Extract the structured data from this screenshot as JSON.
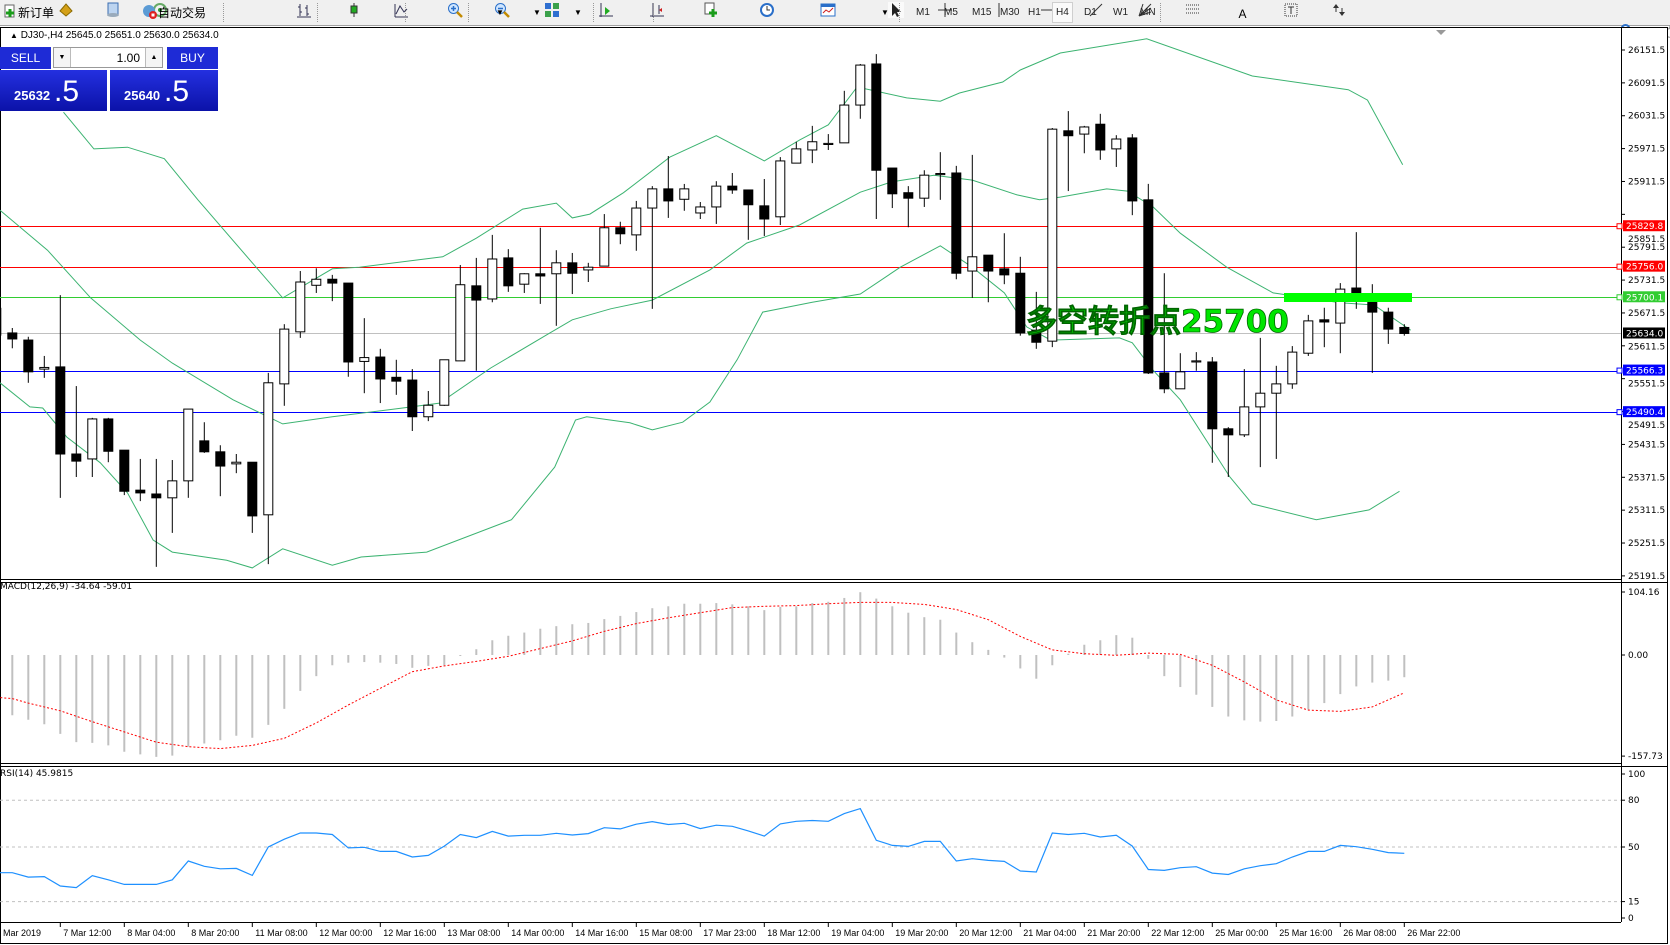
{
  "toolbar": {
    "new_order_label": "新订单",
    "auto_trading_label": "自动交易",
    "timeframes": [
      "M1",
      "M5",
      "M15",
      "M30",
      "H1",
      "H4",
      "D1",
      "W1",
      "MN"
    ],
    "active_timeframe": "H4",
    "icons": [
      "new-order-icon",
      "market-watch-icon",
      "navigator-icon",
      "signals-icon",
      "auto-trading-icon",
      "bar-chart-icon",
      "candlestick-icon",
      "line-chart-icon",
      "zoom-in-icon",
      "zoom-out-icon",
      "tile-windows-icon",
      "auto-scroll-icon",
      "chart-shift-icon",
      "indicators-icon",
      "periods-clock-icon",
      "templates-icon",
      "cursor-icon",
      "crosshair-icon",
      "vertical-line-icon",
      "horizontal-line-icon",
      "trendline-icon",
      "fibonacci-fan-icon",
      "fibonacci-retracement-icon",
      "text-icon",
      "text-label-icon",
      "arrows-icon",
      "search-icon",
      "chat-icon"
    ]
  },
  "chart": {
    "header": "DJ30-,H4  25645.0 25651.0 25630.0 25634.0",
    "trade_panel": {
      "sell_label": "SELL",
      "buy_label": "BUY",
      "lot": "1.00",
      "sell_price_main": "25632",
      "sell_price_big": ".5",
      "buy_price_main": "25640",
      "buy_price_big": ".5"
    },
    "annotation": "多空转折点25700",
    "annotation_color": "#00e600",
    "price_axis_labels": [
      "26151.5",
      "26091.5",
      "26031.5",
      "25971.5",
      "25911.5",
      "25851.5",
      "25791.5",
      "25731.5",
      "25671.5",
      "25611.5",
      "25551.5",
      "25491.5",
      "25431.5",
      "25371.5",
      "25311.5",
      "25251.5",
      "25191.5"
    ],
    "level_lines": [
      {
        "price": "25829.8",
        "color": "#ff0000"
      },
      {
        "price": "25756.0",
        "color": "#ff0000"
      },
      {
        "price": "25700.1",
        "color": "#32cd32"
      },
      {
        "price": "25634.0",
        "color": "#000000",
        "line_color": "#c0c0c0"
      },
      {
        "price": "25566.3",
        "color": "#0000ff"
      },
      {
        "price": "25490.4",
        "color": "#0000ff"
      }
    ],
    "candles_ohlc": [
      [
        25680,
        25695,
        25613,
        25631
      ],
      [
        25635,
        25644,
        25607,
        25624
      ],
      [
        25622,
        25628,
        25544,
        25564
      ],
      [
        25569,
        25593,
        25553,
        25572
      ],
      [
        25573,
        25704,
        25334,
        25414
      ],
      [
        25414,
        25538,
        25372,
        25401
      ],
      [
        25405,
        25480,
        25372,
        25478
      ],
      [
        25478,
        25480,
        25399,
        25419
      ],
      [
        25421,
        25421,
        25339,
        25346
      ],
      [
        25348,
        25405,
        25328,
        25343
      ],
      [
        25341,
        25405,
        25208,
        25334
      ],
      [
        25334,
        25403,
        25270,
        25365
      ],
      [
        25365,
        25496,
        25334,
        25496
      ],
      [
        25438,
        25472,
        25416,
        25418
      ],
      [
        25418,
        25430,
        25337,
        25392
      ],
      [
        25396,
        25414,
        25379,
        25399
      ],
      [
        25399,
        25399,
        25270,
        25301
      ],
      [
        25303,
        25562,
        25213,
        25544
      ],
      [
        25542,
        25651,
        25502,
        25642
      ],
      [
        25637,
        25748,
        25626,
        25728
      ],
      [
        25722,
        25753,
        25708,
        25733
      ],
      [
        25733,
        25741,
        25693,
        25726
      ],
      [
        25726,
        25726,
        25555,
        25582
      ],
      [
        25583,
        25662,
        25525,
        25590
      ],
      [
        25591,
        25606,
        25507,
        25551
      ],
      [
        25554,
        25586,
        25522,
        25547
      ],
      [
        25549,
        25569,
        25456,
        25482
      ],
      [
        25482,
        25529,
        25474,
        25503
      ],
      [
        25503,
        25586,
        25502,
        25586
      ],
      [
        25584,
        25759,
        25584,
        25723
      ],
      [
        25721,
        25772,
        25566,
        25695
      ],
      [
        25697,
        25814,
        25691,
        25770
      ],
      [
        25772,
        25788,
        25710,
        25721
      ],
      [
        25724,
        25744,
        25708,
        25743
      ],
      [
        25743,
        25827,
        25688,
        25739
      ],
      [
        25743,
        25786,
        25648,
        25763
      ],
      [
        25763,
        25781,
        25706,
        25744
      ],
      [
        25750,
        25763,
        25728,
        25755
      ],
      [
        25757,
        25852,
        25757,
        25827
      ],
      [
        25827,
        25838,
        25797,
        25816
      ],
      [
        25814,
        25876,
        25785,
        25863
      ],
      [
        25863,
        25903,
        25679,
        25898
      ],
      [
        25898,
        25958,
        25845,
        25876
      ],
      [
        25879,
        25907,
        25858,
        25898
      ],
      [
        25854,
        25874,
        25843,
        25865
      ],
      [
        25865,
        25912,
        25834,
        25903
      ],
      [
        25903,
        25927,
        25889,
        25896
      ],
      [
        25896,
        25896,
        25805,
        25869
      ],
      [
        25867,
        25916,
        25812,
        25843
      ],
      [
        25847,
        25956,
        25832,
        25949
      ],
      [
        25945,
        25984,
        25945,
        25971
      ],
      [
        25969,
        26013,
        25945,
        25984
      ],
      [
        25979,
        25998,
        25969,
        25981
      ],
      [
        25982,
        26077,
        25982,
        26051
      ],
      [
        26051,
        26126,
        26026,
        26124
      ],
      [
        26126,
        26144,
        25843,
        25932
      ],
      [
        25936,
        25936,
        25863,
        25889
      ],
      [
        25891,
        25903,
        25828,
        25881
      ],
      [
        25881,
        25932,
        25865,
        25923
      ],
      [
        25924,
        25965,
        25878,
        25926
      ],
      [
        25927,
        25940,
        25733,
        25744
      ],
      [
        25748,
        25960,
        25699,
        25774
      ],
      [
        25777,
        25777,
        25691,
        25748
      ],
      [
        25752,
        25817,
        25724,
        25741
      ],
      [
        25744,
        25774,
        25630,
        25635
      ],
      [
        25640,
        25710,
        25606,
        25618
      ],
      [
        25620,
        26009,
        25609,
        26007
      ],
      [
        26004,
        26040,
        25894,
        25995
      ],
      [
        25998,
        26013,
        25963,
        26011
      ],
      [
        26016,
        26035,
        25951,
        25969
      ],
      [
        25971,
        25996,
        25938,
        25989
      ],
      [
        25991,
        25998,
        25850,
        25876
      ],
      [
        25878,
        25907,
        25560,
        25562
      ],
      [
        25562,
        25744,
        25525,
        25533
      ],
      [
        25533,
        25598,
        25533,
        25564
      ],
      [
        25582,
        25600,
        25566,
        25584
      ],
      [
        25582,
        25591,
        25398,
        25460
      ],
      [
        25460,
        25463,
        25372,
        25449
      ],
      [
        25449,
        25569,
        25445,
        25500
      ],
      [
        25500,
        25626,
        25390,
        25525
      ],
      [
        25525,
        25575,
        25405,
        25542
      ],
      [
        25542,
        25611,
        25533,
        25600
      ],
      [
        25598,
        25668,
        25593,
        25657
      ],
      [
        25659,
        25681,
        25609,
        25655
      ],
      [
        25653,
        25726,
        25598,
        25715
      ],
      [
        25717,
        25819,
        25679,
        25708
      ],
      [
        25691,
        25724,
        25562,
        25673
      ],
      [
        25673,
        25681,
        25615,
        25642
      ],
      [
        25645,
        25651,
        25630,
        25634
      ]
    ],
    "bollinger": {
      "color": "#3cb371",
      "upper": [
        [
          3.2,
          26038
        ],
        [
          5.1,
          25971
        ],
        [
          7.2,
          25974
        ],
        [
          9.5,
          25953
        ],
        [
          11.6,
          25878
        ],
        [
          15,
          25763
        ],
        [
          16.9,
          25699
        ],
        [
          20,
          25752
        ],
        [
          21.7,
          25755
        ],
        [
          26.9,
          25774
        ],
        [
          29,
          25808
        ],
        [
          31.9,
          25861
        ],
        [
          34,
          25872
        ],
        [
          35,
          25845
        ],
        [
          36.1,
          25852
        ],
        [
          38.2,
          25891
        ],
        [
          41.1,
          25956
        ],
        [
          44,
          25995
        ],
        [
          47,
          25949
        ],
        [
          49.2,
          25987
        ],
        [
          51,
          26015
        ],
        [
          52.8,
          26084
        ],
        [
          54.2,
          26075
        ],
        [
          55.9,
          26064
        ],
        [
          58,
          26058
        ],
        [
          59.2,
          26073
        ],
        [
          61.9,
          26093
        ],
        [
          63,
          26115
        ],
        [
          65.5,
          26146
        ],
        [
          70.9,
          26172
        ],
        [
          77.5,
          26104
        ],
        [
          83.5,
          26079
        ],
        [
          84.7,
          26060
        ],
        [
          86.9,
          25942
        ]
      ],
      "middle": [
        [
          -0.77,
          25859
        ],
        [
          2.2,
          25786
        ],
        [
          4.9,
          25699
        ],
        [
          8,
          25622
        ],
        [
          10,
          25580
        ],
        [
          13.8,
          25513
        ],
        [
          16.9,
          25469
        ],
        [
          20,
          25482
        ],
        [
          24.4,
          25498
        ],
        [
          26.7,
          25507
        ],
        [
          29.9,
          25571
        ],
        [
          33.6,
          25635
        ],
        [
          35,
          25659
        ],
        [
          37.4,
          25679
        ],
        [
          40,
          25695
        ],
        [
          43.6,
          25750
        ],
        [
          45.9,
          25799
        ],
        [
          49.2,
          25832
        ],
        [
          53,
          25892
        ],
        [
          55,
          25911
        ],
        [
          57.6,
          25923
        ],
        [
          60,
          25914
        ],
        [
          62.8,
          25887
        ],
        [
          64.2,
          25878
        ],
        [
          65.5,
          25883
        ],
        [
          68.4,
          25898
        ],
        [
          69.7,
          25894
        ],
        [
          71.3,
          25865
        ],
        [
          73,
          25817
        ],
        [
          75.9,
          25755
        ],
        [
          78.8,
          25708
        ],
        [
          83,
          25690
        ],
        [
          85.1,
          25686
        ],
        [
          87.4,
          25640
        ]
      ],
      "lower": [
        [
          -0.77,
          25544
        ],
        [
          1.1,
          25500
        ],
        [
          1.9,
          25498
        ],
        [
          3.4,
          25445
        ],
        [
          5.5,
          25398
        ],
        [
          7.2,
          25343
        ],
        [
          8.8,
          25257
        ],
        [
          10,
          25235
        ],
        [
          13.4,
          25220
        ],
        [
          15,
          25206
        ],
        [
          16.9,
          25241
        ],
        [
          20,
          25211
        ],
        [
          21.8,
          25226
        ],
        [
          25.9,
          25235
        ],
        [
          31.2,
          25294
        ],
        [
          33.9,
          25390
        ],
        [
          35.2,
          25476
        ],
        [
          35.9,
          25482
        ],
        [
          38.6,
          25471
        ],
        [
          40,
          25458
        ],
        [
          41.9,
          25472
        ],
        [
          43.6,
          25509
        ],
        [
          45.3,
          25586
        ],
        [
          46.9,
          25673
        ],
        [
          50,
          25691
        ],
        [
          53,
          25706
        ],
        [
          55.5,
          25755
        ],
        [
          58,
          25794
        ],
        [
          60,
          25755
        ],
        [
          62,
          25708
        ],
        [
          63.4,
          25646
        ],
        [
          64.9,
          25622
        ],
        [
          69.2,
          25626
        ],
        [
          70,
          25617
        ],
        [
          71.3,
          25567
        ],
        [
          73,
          25513
        ],
        [
          76.1,
          25372
        ],
        [
          77.5,
          25323
        ],
        [
          81.5,
          25294
        ],
        [
          84.8,
          25312
        ],
        [
          86.7,
          25346
        ]
      ]
    }
  },
  "macd": {
    "label": "MACD(12,26,9) -34.64 -59.01",
    "axis_labels": [
      "104.16",
      "0.00",
      "-157.73"
    ],
    "histogram_color": "#c0c0c0",
    "signal_color": "#ff0000",
    "histogram": [
      -94,
      -101,
      -108,
      -123,
      -136,
      -137,
      -141,
      -151,
      -155,
      -159,
      -157,
      -143,
      -138,
      -133,
      -126,
      -129,
      -109,
      -84,
      -56,
      -33,
      -16,
      -12,
      -11,
      -12,
      -14,
      -20,
      -17,
      -16,
      -1.5,
      9,
      23,
      30,
      35,
      41,
      45,
      48,
      50,
      56,
      61,
      67,
      73,
      76,
      80,
      80,
      81,
      79,
      76,
      70,
      75,
      76,
      81,
      83,
      89,
      98,
      88,
      76,
      66,
      59,
      55,
      35,
      20,
      8,
      -4,
      -21,
      -37,
      -16,
      2,
      16,
      23,
      31,
      27,
      -6,
      -33,
      -50,
      -62,
      -81,
      -96,
      -102,
      -104,
      -103,
      -96,
      -85,
      -75,
      -61,
      -49,
      -43,
      -40,
      -34.64
    ],
    "signal": [
      [
        -1,
        -66
      ],
      [
        0,
        -68
      ],
      [
        1,
        -75
      ],
      [
        3,
        -87
      ],
      [
        5,
        -104
      ],
      [
        7,
        -120
      ],
      [
        9,
        -136
      ],
      [
        11,
        -143
      ],
      [
        13,
        -146
      ],
      [
        15,
        -141
      ],
      [
        17,
        -130
      ],
      [
        19,
        -106
      ],
      [
        21,
        -78
      ],
      [
        23,
        -52
      ],
      [
        25,
        -26
      ],
      [
        27,
        -17
      ],
      [
        29,
        -10
      ],
      [
        31,
        -2
      ],
      [
        33,
        10
      ],
      [
        35,
        22
      ],
      [
        37,
        37
      ],
      [
        39,
        49
      ],
      [
        41,
        58
      ],
      [
        43,
        66
      ],
      [
        45,
        74
      ],
      [
        47,
        76
      ],
      [
        49,
        77
      ],
      [
        51,
        80
      ],
      [
        53,
        82
      ],
      [
        55,
        82
      ],
      [
        57,
        79
      ],
      [
        59,
        71
      ],
      [
        61,
        55
      ],
      [
        63,
        29
      ],
      [
        65,
        8
      ],
      [
        67,
        2
      ],
      [
        69,
        -0.5
      ],
      [
        71,
        3
      ],
      [
        73,
        1
      ],
      [
        75,
        -16
      ],
      [
        77,
        -42
      ],
      [
        79,
        -70
      ],
      [
        81,
        -86
      ],
      [
        83,
        -88
      ],
      [
        85,
        -81
      ],
      [
        87,
        -59.01
      ]
    ]
  },
  "rsi": {
    "label": "RSI(14) 45.9815",
    "axis_labels": [
      "100",
      "80",
      "50",
      "15",
      "0"
    ],
    "line_color": "#1e90ff",
    "values": [
      33.5,
      30.7,
      31,
      25,
      24,
      31.6,
      29,
      26,
      26,
      26,
      29,
      41,
      37.6,
      36,
      36.3,
      31.8,
      50,
      55,
      59,
      59,
      58,
      49.4,
      49.8,
      47.2,
      47.2,
      43.6,
      44.6,
      50.6,
      58,
      56,
      60,
      57,
      57.5,
      57.5,
      58.8,
      57.7,
      58.6,
      62.4,
      61.6,
      64.6,
      66.3,
      64.4,
      65.2,
      61.8,
      64,
      63.3,
      60.3,
      57,
      64.8,
      66.5,
      67,
      66.5,
      71.4,
      74.6,
      54.3,
      51,
      50.4,
      53.6,
      53.6,
      41,
      42.5,
      41.4,
      40.8,
      34.6,
      34,
      59,
      58,
      58.8,
      56.4,
      57.5,
      50.6,
      35.6,
      35,
      36.7,
      37.4,
      33.3,
      32.4,
      36,
      38,
      39.3,
      43.6,
      47.2,
      47.2,
      51,
      50.2,
      48.5,
      46.4,
      45.98
    ]
  },
  "time_axis": {
    "labels": [
      "Mar 2019",
      "7 Mar 12:00",
      "8 Mar 04:00",
      "8 Mar 20:00",
      "11 Mar 08:00",
      "12 Mar 00:00",
      "12 Mar 16:00",
      "13 Mar 08:00",
      "14 Mar 00:00",
      "14 Mar 16:00",
      "15 Mar 08:00",
      "17 Mar 23:00",
      "18 Mar 12:00",
      "19 Mar 04:00",
      "19 Mar 20:00",
      "20 Mar 12:00",
      "21 Mar 04:00",
      "21 Mar 20:00",
      "22 Mar 12:00",
      "25 Mar 00:00",
      "25 Mar 16:00",
      "26 Mar 08:00",
      "26 Mar 22:00"
    ]
  }
}
